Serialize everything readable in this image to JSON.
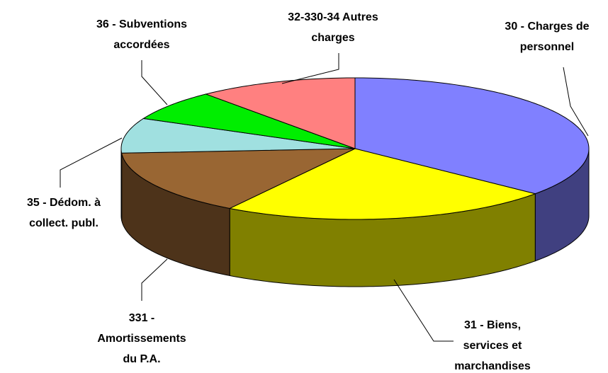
{
  "chart_data": {
    "type": "pie3d",
    "categories": [
      [
        "30 - Charges de",
        "personnel"
      ],
      [
        "31 - Biens,",
        "services et",
        "marchandises"
      ],
      [
        "331 -",
        "Amortissements",
        "du P.A."
      ],
      [
        "35 - Dédom. à",
        "collect. publ."
      ],
      [
        "36 - Subventions",
        "accordées"
      ],
      [
        "32-330-34 Autres",
        "charges"
      ]
    ],
    "values": [
      36,
      23,
      15,
      8,
      7,
      11
    ],
    "colors": [
      "#8080ff",
      "#ffff00",
      "#996633",
      "#a0e0e0",
      "#00ee00",
      "#ff8080"
    ],
    "side_colors": [
      "#404080",
      "#808000",
      "#4d331a",
      "#507070",
      "#007700",
      "#804040"
    ]
  }
}
